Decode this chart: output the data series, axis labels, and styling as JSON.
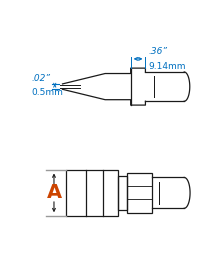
{
  "bg_color": "#ffffff",
  "line_color": "#1a1a1a",
  "dim_color": "#0070c0",
  "orange_color": "#cc4400",
  "gray_color": "#999999",
  "dim_text_top_line1": ".36”",
  "dim_text_top_line2": "9.14mm",
  "dim_text_left_line1": ".02”",
  "dim_text_left_line2": "0.5mm",
  "label_A": "A",
  "fig_width": 2.21,
  "fig_height": 2.79,
  "dpi": 100
}
